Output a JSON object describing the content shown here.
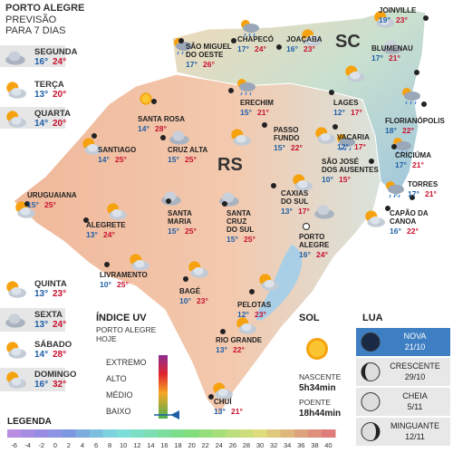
{
  "header": {
    "title": "PORTO ALEGRE",
    "subtitle_lines": [
      "PREVISÃO",
      "PARA 7 DIAS"
    ]
  },
  "forecast": [
    {
      "day": "SEGUNDA",
      "min": "16°",
      "max": "24°"
    },
    {
      "day": "TERÇA",
      "min": "13°",
      "max": "20°"
    },
    {
      "day": "QUARTA",
      "min": "14°",
      "max": "20°"
    },
    {
      "day": "QUINTA",
      "min": "13°",
      "max": "23°"
    },
    {
      "day": "SEXTA",
      "min": "13°",
      "max": "24°"
    },
    {
      "day": "SÁBADO",
      "min": "14°",
      "max": "28°"
    },
    {
      "day": "DOMINGO",
      "min": "16°",
      "max": "32°"
    }
  ],
  "regions": [
    "SC",
    "RS"
  ],
  "cities": [
    {
      "name_lines": [
        "JOINVILLE"
      ],
      "min": "19°",
      "max": "23°"
    },
    {
      "name_lines": [
        "SÃO MIGUEL",
        "DO OESTE"
      ],
      "min": "17°",
      "max": "26°"
    },
    {
      "name_lines": [
        "CHAPECÓ"
      ],
      "min": "17°",
      "max": "24°"
    },
    {
      "name_lines": [
        "JOAÇABA"
      ],
      "min": "16°",
      "max": "23°"
    },
    {
      "name_lines": [
        "BLUMENAU"
      ],
      "min": "17°",
      "max": "21°"
    },
    {
      "name_lines": [
        "SANTA ROSA"
      ],
      "min": "14°",
      "max": "28°"
    },
    {
      "name_lines": [
        "LAGES"
      ],
      "min": "12°",
      "max": "17°"
    },
    {
      "name_lines": [
        "FLORIANÓPOLIS"
      ],
      "min": "18°",
      "max": "22°"
    },
    {
      "name_lines": [
        "ERECHIM"
      ],
      "min": "15°",
      "max": "21°"
    },
    {
      "name_lines": [
        "PASSO",
        "FUNDO"
      ],
      "min": "15°",
      "max": "22°"
    },
    {
      "name_lines": [
        "VACARIA"
      ],
      "min": "12°",
      "max": "17°"
    },
    {
      "name_lines": [
        "SÃO JOSÉ",
        "DOS AUSENTES"
      ],
      "min": "10°",
      "max": "15°"
    },
    {
      "name_lines": [
        "CRICIÚMA"
      ],
      "min": "17°",
      "max": "21°"
    },
    {
      "name_lines": [
        "SANTIAGO"
      ],
      "min": "14°",
      "max": "25°"
    },
    {
      "name_lines": [
        "CRUZ ALTA"
      ],
      "min": "15°",
      "max": "25°"
    },
    {
      "name_lines": [
        "URUGUAIANA"
      ],
      "min": "15°",
      "max": "25°"
    },
    {
      "name_lines": [
        "TORRES"
      ],
      "min": "17°",
      "max": "21°"
    },
    {
      "name_lines": [
        "CAXIAS",
        "DO SUL"
      ],
      "min": "13°",
      "max": "17°"
    },
    {
      "name_lines": [
        "CAPÃO DA",
        "CANOA"
      ],
      "min": "16°",
      "max": "22°"
    },
    {
      "name_lines": [
        "ALEGRETE"
      ],
      "min": "13°",
      "max": "24°"
    },
    {
      "name_lines": [
        "SANTA",
        "MARIA"
      ],
      "min": "15°",
      "max": "25°"
    },
    {
      "name_lines": [
        "SANTA",
        "CRUZ",
        "DO SUL"
      ],
      "min": "15°",
      "max": "25°"
    },
    {
      "name_lines": [
        "PORTO",
        "ALEGRE"
      ],
      "min": "16°",
      "max": "24°"
    },
    {
      "name_lines": [
        "LIVRAMENTO"
      ],
      "min": "10°",
      "max": "25°"
    },
    {
      "name_lines": [
        "BAGÉ"
      ],
      "min": "10°",
      "max": "23°"
    },
    {
      "name_lines": [
        "PELOTAS"
      ],
      "min": "12°",
      "max": "23°"
    },
    {
      "name_lines": [
        "RIO GRANDE"
      ],
      "min": "13°",
      "max": "22°"
    },
    {
      "name_lines": [
        "CHUÍ"
      ],
      "min": "13°",
      "max": "21°"
    }
  ],
  "uv": {
    "title": "ÍNDICE UV",
    "place_lines": [
      "PORTO ALEGRE",
      "HOJE"
    ],
    "levels": [
      "EXTREMO",
      "ALTO",
      "MÉDIO",
      "BAIXO"
    ]
  },
  "sun": {
    "title": "SOL",
    "rise_label": "NASCENTE",
    "rise": "5h34min",
    "set_label": "POENTE",
    "set": "18h44min"
  },
  "moon": {
    "title": "LUA",
    "phases": [
      {
        "name": "NOVA",
        "date": "21/10"
      },
      {
        "name": "CRESCENTE",
        "date": "29/10"
      },
      {
        "name": "CHEIA",
        "date": "5/11"
      },
      {
        "name": "MINGUANTE",
        "date": "12/11"
      }
    ]
  },
  "legend": {
    "title": "LEGENDA",
    "scale": [
      -6,
      -4,
      -2,
      0,
      2,
      4,
      6,
      8,
      10,
      12,
      14,
      16,
      18,
      20,
      22,
      24,
      26,
      28,
      30,
      32,
      34,
      36,
      38,
      40
    ]
  }
}
